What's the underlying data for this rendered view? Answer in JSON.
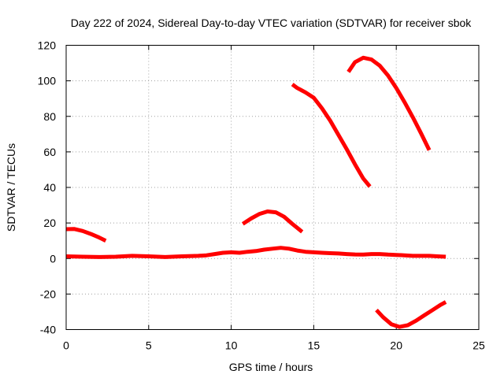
{
  "chart_data": {
    "type": "line",
    "title": "Day 222 of 2024, Sidereal Day-to-day VTEC variation (SDTVAR) for receiver sbok",
    "xlabel": "GPS time / hours",
    "ylabel": "SDTVAR / TECUs",
    "xlim": [
      0,
      25
    ],
    "ylim": [
      -40,
      120
    ],
    "xticks": [
      0,
      5,
      10,
      15,
      20,
      25
    ],
    "yticks": [
      -40,
      -20,
      0,
      20,
      40,
      60,
      80,
      100,
      120
    ],
    "xtick_labels": [
      "0",
      "5",
      "10",
      "15",
      "20",
      "25"
    ],
    "ytick_labels": [
      "-40",
      "-20",
      "0",
      "20",
      "40",
      "60",
      "80",
      "100",
      "120"
    ],
    "grid": true,
    "legend": "none",
    "color": "#ff0000",
    "series": [
      {
        "name": "arc-1",
        "x": [
          0,
          0.5,
          1.0,
          1.5,
          2.0,
          2.4
        ],
        "y": [
          16.5,
          16.6,
          15.5,
          13.8,
          11.8,
          10
        ]
      },
      {
        "name": "arc-2",
        "x": [
          0,
          1,
          2,
          3,
          4,
          5,
          6,
          7,
          8,
          8.5,
          9,
          9.5,
          10,
          10.5,
          11,
          11.5,
          12,
          12.5,
          13,
          13.5,
          14,
          14.5,
          15,
          15.5,
          16,
          16.5,
          17,
          17.5,
          18,
          18.5,
          19,
          19.5,
          20,
          20.5,
          21,
          21.5,
          22,
          22.5,
          23
        ],
        "y": [
          1.2,
          1.0,
          0.8,
          1.0,
          1.5,
          1.2,
          0.8,
          1.2,
          1.5,
          1.8,
          2.5,
          3.2,
          3.5,
          3.2,
          3.8,
          4.2,
          5.0,
          5.5,
          6.0,
          5.5,
          4.5,
          3.8,
          3.5,
          3.2,
          3.0,
          2.8,
          2.5,
          2.3,
          2.2,
          2.5,
          2.5,
          2.2,
          2.0,
          1.8,
          1.5,
          1.5,
          1.5,
          1.2,
          1.0
        ]
      },
      {
        "name": "arc-3",
        "x": [
          10.7,
          11.2,
          11.7,
          12.2,
          12.7,
          13.2,
          13.7,
          14.3
        ],
        "y": [
          19.5,
          22.5,
          25.0,
          26.5,
          26.0,
          23.5,
          19.5,
          15
        ]
      },
      {
        "name": "arc-4",
        "x": [
          13.7,
          14.0,
          14.5,
          15.0,
          15.5,
          16.0,
          16.5,
          17.0,
          17.5,
          18.0,
          18.4
        ],
        "y": [
          98,
          96,
          93.5,
          90.5,
          84.5,
          77.5,
          69.5,
          61.5,
          53,
          45,
          40.5
        ]
      },
      {
        "name": "arc-5",
        "x": [
          17.1,
          17.5,
          18.0,
          18.5,
          19.0,
          19.5,
          20.0,
          20.5,
          21.0,
          21.5,
          22.0
        ],
        "y": [
          105,
          110.5,
          113,
          112,
          108.5,
          103,
          96,
          88,
          79.5,
          70.5,
          61
        ]
      },
      {
        "name": "arc-6",
        "x": [
          18.8,
          19.2,
          19.7,
          20.2,
          20.7,
          21.2,
          21.7,
          22.2,
          22.7,
          23.0
        ],
        "y": [
          -29,
          -33,
          -37,
          -38.5,
          -37.5,
          -35,
          -32,
          -29,
          -26,
          -24.5
        ]
      }
    ]
  }
}
